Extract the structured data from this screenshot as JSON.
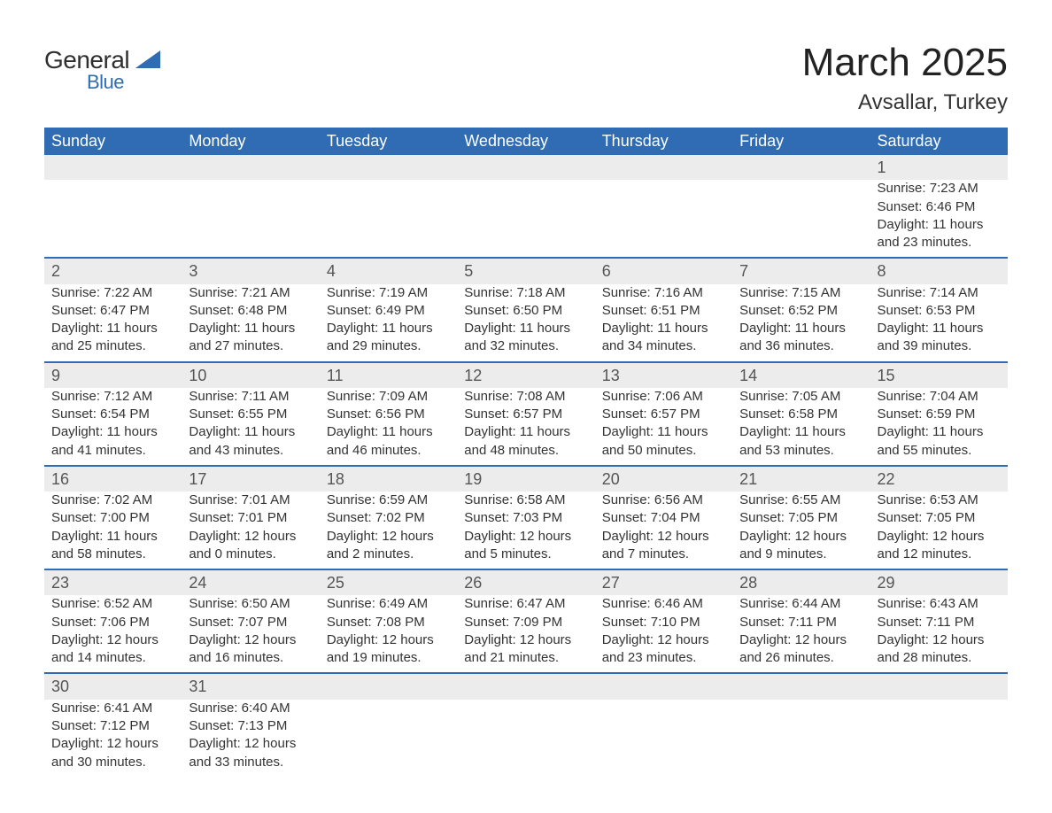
{
  "logo": {
    "text_general": "General",
    "text_blue": "Blue",
    "color_general": "#2f2f2f",
    "color_blue": "#2f6cb3"
  },
  "title": "March 2025",
  "location": "Avsallar, Turkey",
  "header_bg": "#2f6cb3",
  "header_fg": "#ffffff",
  "daynum_bg": "#ececec",
  "rule_color": "#2f6cb3",
  "text_color": "#333333",
  "title_fontsize": 44,
  "location_fontsize": 24,
  "header_fontsize": 18,
  "cell_fontsize": 15,
  "weekdays": [
    "Sunday",
    "Monday",
    "Tuesday",
    "Wednesday",
    "Thursday",
    "Friday",
    "Saturday"
  ],
  "weeks": [
    [
      null,
      null,
      null,
      null,
      null,
      null,
      {
        "n": "1",
        "sunrise": "Sunrise: 7:23 AM",
        "sunset": "Sunset: 6:46 PM",
        "d1": "Daylight: 11 hours",
        "d2": "and 23 minutes."
      }
    ],
    [
      {
        "n": "2",
        "sunrise": "Sunrise: 7:22 AM",
        "sunset": "Sunset: 6:47 PM",
        "d1": "Daylight: 11 hours",
        "d2": "and 25 minutes."
      },
      {
        "n": "3",
        "sunrise": "Sunrise: 7:21 AM",
        "sunset": "Sunset: 6:48 PM",
        "d1": "Daylight: 11 hours",
        "d2": "and 27 minutes."
      },
      {
        "n": "4",
        "sunrise": "Sunrise: 7:19 AM",
        "sunset": "Sunset: 6:49 PM",
        "d1": "Daylight: 11 hours",
        "d2": "and 29 minutes."
      },
      {
        "n": "5",
        "sunrise": "Sunrise: 7:18 AM",
        "sunset": "Sunset: 6:50 PM",
        "d1": "Daylight: 11 hours",
        "d2": "and 32 minutes."
      },
      {
        "n": "6",
        "sunrise": "Sunrise: 7:16 AM",
        "sunset": "Sunset: 6:51 PM",
        "d1": "Daylight: 11 hours",
        "d2": "and 34 minutes."
      },
      {
        "n": "7",
        "sunrise": "Sunrise: 7:15 AM",
        "sunset": "Sunset: 6:52 PM",
        "d1": "Daylight: 11 hours",
        "d2": "and 36 minutes."
      },
      {
        "n": "8",
        "sunrise": "Sunrise: 7:14 AM",
        "sunset": "Sunset: 6:53 PM",
        "d1": "Daylight: 11 hours",
        "d2": "and 39 minutes."
      }
    ],
    [
      {
        "n": "9",
        "sunrise": "Sunrise: 7:12 AM",
        "sunset": "Sunset: 6:54 PM",
        "d1": "Daylight: 11 hours",
        "d2": "and 41 minutes."
      },
      {
        "n": "10",
        "sunrise": "Sunrise: 7:11 AM",
        "sunset": "Sunset: 6:55 PM",
        "d1": "Daylight: 11 hours",
        "d2": "and 43 minutes."
      },
      {
        "n": "11",
        "sunrise": "Sunrise: 7:09 AM",
        "sunset": "Sunset: 6:56 PM",
        "d1": "Daylight: 11 hours",
        "d2": "and 46 minutes."
      },
      {
        "n": "12",
        "sunrise": "Sunrise: 7:08 AM",
        "sunset": "Sunset: 6:57 PM",
        "d1": "Daylight: 11 hours",
        "d2": "and 48 minutes."
      },
      {
        "n": "13",
        "sunrise": "Sunrise: 7:06 AM",
        "sunset": "Sunset: 6:57 PM",
        "d1": "Daylight: 11 hours",
        "d2": "and 50 minutes."
      },
      {
        "n": "14",
        "sunrise": "Sunrise: 7:05 AM",
        "sunset": "Sunset: 6:58 PM",
        "d1": "Daylight: 11 hours",
        "d2": "and 53 minutes."
      },
      {
        "n": "15",
        "sunrise": "Sunrise: 7:04 AM",
        "sunset": "Sunset: 6:59 PM",
        "d1": "Daylight: 11 hours",
        "d2": "and 55 minutes."
      }
    ],
    [
      {
        "n": "16",
        "sunrise": "Sunrise: 7:02 AM",
        "sunset": "Sunset: 7:00 PM",
        "d1": "Daylight: 11 hours",
        "d2": "and 58 minutes."
      },
      {
        "n": "17",
        "sunrise": "Sunrise: 7:01 AM",
        "sunset": "Sunset: 7:01 PM",
        "d1": "Daylight: 12 hours",
        "d2": "and 0 minutes."
      },
      {
        "n": "18",
        "sunrise": "Sunrise: 6:59 AM",
        "sunset": "Sunset: 7:02 PM",
        "d1": "Daylight: 12 hours",
        "d2": "and 2 minutes."
      },
      {
        "n": "19",
        "sunrise": "Sunrise: 6:58 AM",
        "sunset": "Sunset: 7:03 PM",
        "d1": "Daylight: 12 hours",
        "d2": "and 5 minutes."
      },
      {
        "n": "20",
        "sunrise": "Sunrise: 6:56 AM",
        "sunset": "Sunset: 7:04 PM",
        "d1": "Daylight: 12 hours",
        "d2": "and 7 minutes."
      },
      {
        "n": "21",
        "sunrise": "Sunrise: 6:55 AM",
        "sunset": "Sunset: 7:05 PM",
        "d1": "Daylight: 12 hours",
        "d2": "and 9 minutes."
      },
      {
        "n": "22",
        "sunrise": "Sunrise: 6:53 AM",
        "sunset": "Sunset: 7:05 PM",
        "d1": "Daylight: 12 hours",
        "d2": "and 12 minutes."
      }
    ],
    [
      {
        "n": "23",
        "sunrise": "Sunrise: 6:52 AM",
        "sunset": "Sunset: 7:06 PM",
        "d1": "Daylight: 12 hours",
        "d2": "and 14 minutes."
      },
      {
        "n": "24",
        "sunrise": "Sunrise: 6:50 AM",
        "sunset": "Sunset: 7:07 PM",
        "d1": "Daylight: 12 hours",
        "d2": "and 16 minutes."
      },
      {
        "n": "25",
        "sunrise": "Sunrise: 6:49 AM",
        "sunset": "Sunset: 7:08 PM",
        "d1": "Daylight: 12 hours",
        "d2": "and 19 minutes."
      },
      {
        "n": "26",
        "sunrise": "Sunrise: 6:47 AM",
        "sunset": "Sunset: 7:09 PM",
        "d1": "Daylight: 12 hours",
        "d2": "and 21 minutes."
      },
      {
        "n": "27",
        "sunrise": "Sunrise: 6:46 AM",
        "sunset": "Sunset: 7:10 PM",
        "d1": "Daylight: 12 hours",
        "d2": "and 23 minutes."
      },
      {
        "n": "28",
        "sunrise": "Sunrise: 6:44 AM",
        "sunset": "Sunset: 7:11 PM",
        "d1": "Daylight: 12 hours",
        "d2": "and 26 minutes."
      },
      {
        "n": "29",
        "sunrise": "Sunrise: 6:43 AM",
        "sunset": "Sunset: 7:11 PM",
        "d1": "Daylight: 12 hours",
        "d2": "and 28 minutes."
      }
    ],
    [
      {
        "n": "30",
        "sunrise": "Sunrise: 6:41 AM",
        "sunset": "Sunset: 7:12 PM",
        "d1": "Daylight: 12 hours",
        "d2": "and 30 minutes."
      },
      {
        "n": "31",
        "sunrise": "Sunrise: 6:40 AM",
        "sunset": "Sunset: 7:13 PM",
        "d1": "Daylight: 12 hours",
        "d2": "and 33 minutes."
      },
      null,
      null,
      null,
      null,
      null
    ]
  ]
}
